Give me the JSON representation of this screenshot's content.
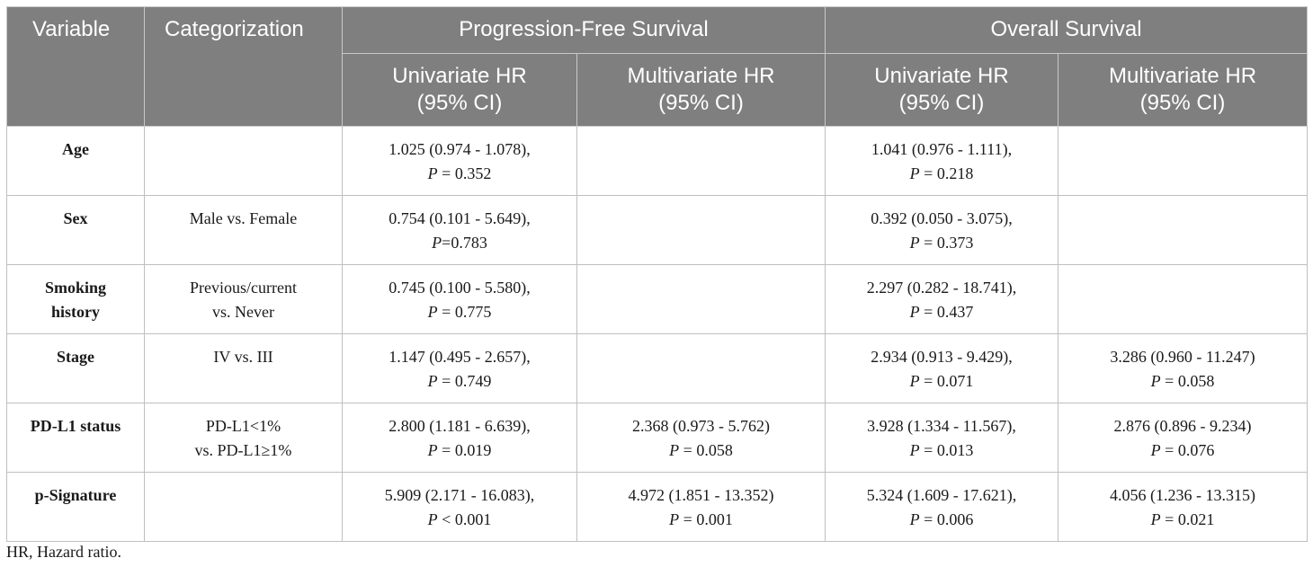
{
  "header": {
    "variable": "Variable",
    "categorization": "Categorization",
    "pfs": "Progression-Free Survival",
    "os": "Overall Survival",
    "univariate_l1": "Univariate HR",
    "univariate_l2": "(95% CI)",
    "multivariate_l1": "Multivariate HR",
    "multivariate_l2": "(95% CI)"
  },
  "rows": [
    {
      "variable": [
        "Age",
        ""
      ],
      "categorization": [
        "",
        ""
      ],
      "pfs_uni": [
        "1.025 (0.974 - 1.078),",
        "P",
        " = 0.352"
      ],
      "pfs_multi": [
        "",
        "",
        ""
      ],
      "os_uni": [
        "1.041 (0.976 - 1.111),",
        "P",
        " = 0.218"
      ],
      "os_multi": [
        "",
        "",
        ""
      ]
    },
    {
      "variable": [
        "Sex",
        ""
      ],
      "categorization": [
        "Male vs. Female",
        ""
      ],
      "pfs_uni": [
        "0.754 (0.101 - 5.649),",
        "P",
        "=0.783"
      ],
      "pfs_multi": [
        "",
        "",
        ""
      ],
      "os_uni": [
        "0.392 (0.050 - 3.075),",
        "P",
        " = 0.373"
      ],
      "os_multi": [
        "",
        "",
        ""
      ]
    },
    {
      "variable": [
        "Smoking",
        "history"
      ],
      "categorization": [
        "Previous/current",
        "vs. Never"
      ],
      "pfs_uni": [
        "0.745 (0.100 - 5.580),",
        "P",
        " = 0.775"
      ],
      "pfs_multi": [
        "",
        "",
        ""
      ],
      "os_uni": [
        "2.297 (0.282 - 18.741),",
        "P",
        " = 0.437"
      ],
      "os_multi": [
        "",
        "",
        ""
      ]
    },
    {
      "variable": [
        "Stage",
        ""
      ],
      "categorization": [
        "IV vs. III",
        ""
      ],
      "pfs_uni": [
        "1.147 (0.495 - 2.657),",
        "P",
        " = 0.749"
      ],
      "pfs_multi": [
        "",
        "",
        ""
      ],
      "os_uni": [
        "2.934 (0.913 - 9.429),",
        "P",
        " = 0.071"
      ],
      "os_multi": [
        "3.286 (0.960 - 11.247)",
        "P",
        " = 0.058"
      ]
    },
    {
      "variable": [
        "PD-L1 status",
        ""
      ],
      "categorization": [
        "PD-L1<1%",
        "vs. PD-L1≥1%"
      ],
      "pfs_uni": [
        "2.800 (1.181 - 6.639),",
        "P",
        " = 0.019"
      ],
      "pfs_multi": [
        "2.368 (0.973 - 5.762)",
        "P",
        " = 0.058"
      ],
      "os_uni": [
        "3.928 (1.334 - 11.567),",
        "P",
        " = 0.013"
      ],
      "os_multi": [
        "2.876 (0.896 - 9.234)",
        "P",
        " = 0.076"
      ]
    },
    {
      "variable": [
        "p-Signature",
        ""
      ],
      "categorization": [
        "",
        ""
      ],
      "pfs_uni": [
        "5.909 (2.171 - 16.083),",
        "P",
        " < 0.001"
      ],
      "pfs_multi": [
        "4.972 (1.851 - 13.352)",
        "P",
        " = 0.001"
      ],
      "os_uni": [
        "5.324 (1.609 - 17.621),",
        "P",
        " = 0.006"
      ],
      "os_multi": [
        "4.056 (1.236 - 13.315)",
        "P",
        " = 0.021"
      ]
    }
  ],
  "footnote": "HR, Hazard ratio."
}
